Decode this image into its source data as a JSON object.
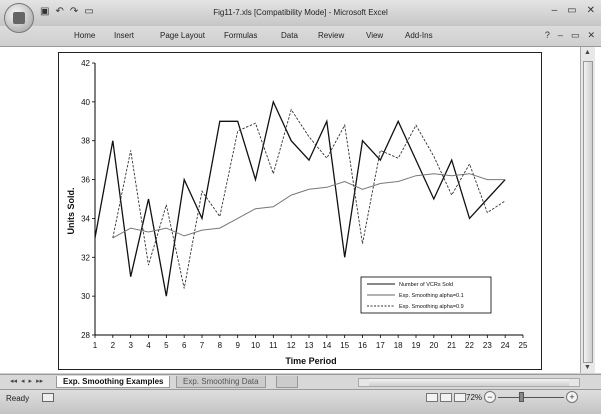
{
  "window": {
    "title": "Fig11-7.xls  [Compatibility Mode]  -  Microsoft Excel",
    "minimize_glyph": "–",
    "restore_glyph": "▭",
    "close_glyph": "✕"
  },
  "quick_access": [
    "save-icon",
    "undo-icon",
    "redo-icon",
    "open-icon"
  ],
  "ribbon": {
    "tabs": [
      "Home",
      "Insert",
      "Page Layout",
      "Formulas",
      "Data",
      "Review",
      "View",
      "Add-Ins"
    ],
    "help_glyph": "?",
    "min_glyph": "–",
    "restore_glyph": "▭",
    "close_glyph": "✕"
  },
  "sheet_tabs": {
    "nav": [
      "◂◂",
      "◂",
      "▸",
      "▸▸"
    ],
    "tabs": [
      {
        "label": "Exp. Smoothing Examples",
        "active": true
      },
      {
        "label": "Exp. Smoothing Data",
        "active": false
      }
    ]
  },
  "status": {
    "text": "Ready",
    "zoom": "72%",
    "zoom_minus": "−",
    "zoom_plus": "+"
  },
  "colors": {
    "series_line": "#222222",
    "grid": "#000000"
  },
  "chart_data": {
    "type": "line",
    "xlabel": "Time Period",
    "ylabel": "Units Sold.",
    "ylim": [
      28,
      42
    ],
    "yticks": [
      28,
      30,
      32,
      34,
      36,
      38,
      40,
      42
    ],
    "xlim": [
      1,
      25
    ],
    "xticks": [
      1,
      2,
      3,
      4,
      5,
      6,
      7,
      8,
      9,
      10,
      11,
      12,
      13,
      14,
      15,
      16,
      17,
      18,
      19,
      20,
      21,
      22,
      23,
      24,
      25
    ],
    "legend_position": "bottom-right",
    "series": [
      {
        "name": "Number of VCRs Sold",
        "style": "solid-dark",
        "x": [
          1,
          2,
          3,
          4,
          5,
          6,
          7,
          8,
          9,
          10,
          11,
          12,
          13,
          14,
          15,
          16,
          17,
          18,
          19,
          20,
          21,
          22,
          23,
          24
        ],
        "values": [
          33,
          38,
          31,
          35,
          30,
          36,
          34,
          39,
          39,
          36,
          40,
          38,
          37,
          39,
          32,
          38,
          37,
          39,
          37,
          35,
          37,
          34,
          35,
          36
        ]
      },
      {
        "name": "Exp. Smoothing alpha=0.1",
        "style": "solid-light",
        "x": [
          2,
          3,
          4,
          5,
          6,
          7,
          8,
          9,
          10,
          11,
          12,
          13,
          14,
          15,
          16,
          17,
          18,
          19,
          20,
          21,
          22,
          23,
          24
        ],
        "values": [
          33.0,
          33.5,
          33.3,
          33.5,
          33.1,
          33.4,
          33.5,
          34.0,
          34.5,
          34.6,
          35.2,
          35.5,
          35.6,
          35.9,
          35.5,
          35.8,
          35.9,
          36.2,
          36.3,
          36.2,
          36.3,
          36.0,
          36.0
        ]
      },
      {
        "name": "Exp. Smoothing alpha=0.9",
        "style": "dashed",
        "x": [
          2,
          3,
          4,
          5,
          6,
          7,
          8,
          9,
          10,
          11,
          12,
          13,
          14,
          15,
          16,
          17,
          18,
          19,
          20,
          21,
          22,
          23,
          24
        ],
        "values": [
          33.0,
          37.5,
          31.6,
          34.7,
          30.4,
          35.4,
          34.1,
          38.5,
          38.9,
          36.3,
          39.6,
          38.2,
          37.1,
          38.8,
          32.7,
          37.5,
          37.1,
          38.8,
          37.2,
          35.2,
          36.8,
          34.3,
          34.9
        ]
      }
    ]
  }
}
